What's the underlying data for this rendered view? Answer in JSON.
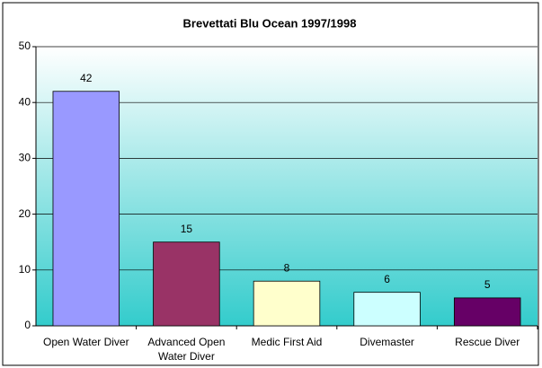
{
  "chart_data": {
    "type": "bar",
    "title": "Brevettati Blu Ocean 1997/1998",
    "categories": [
      "Open Water Diver",
      "Advanced Open Water Diver",
      "Medic First Aid",
      "Divemaster",
      "Rescue Diver"
    ],
    "values": [
      42,
      15,
      8,
      6,
      5
    ],
    "colors": [
      "#9999ff",
      "#993366",
      "#ffffcc",
      "#ccffff",
      "#660066"
    ],
    "ylim": [
      0,
      50
    ],
    "yticks": [
      0,
      10,
      20,
      30,
      40,
      50
    ],
    "grid": true
  }
}
